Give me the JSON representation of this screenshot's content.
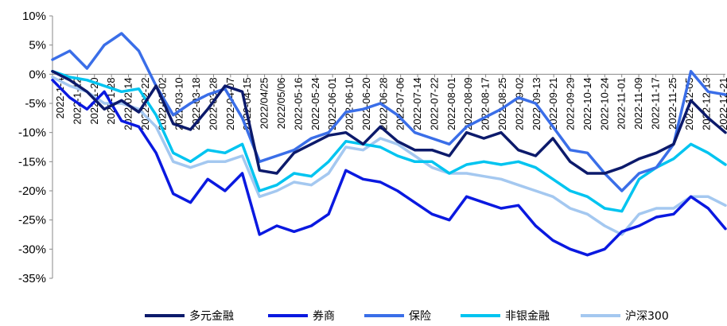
{
  "chart_data": {
    "type": "line",
    "title": "",
    "xlabel": "",
    "ylabel": "",
    "ylim": [
      -35,
      10
    ],
    "y_ticks": [
      "10%",
      "5%",
      "0%",
      "-5%",
      "-10%",
      "-15%",
      "-20%",
      "-25%",
      "-30%",
      "-35%"
    ],
    "x_tick_labels": [
      "2022-1-4",
      "2022-1-12",
      "2022-1-20",
      "2022-1-28",
      "2022-02-14",
      "2022-02-22",
      "2022-03-02",
      "2022-03-10",
      "2022-03-18",
      "2022-03-28",
      "2022-04-07",
      "2022-04-15",
      "2022/04/25",
      "2022/05/06",
      "2022-05-16",
      "2022-05-24",
      "2022-06-01",
      "2022-06-10",
      "2022-06-20",
      "2022-06-28",
      "2022-07-06",
      "2022-07-14",
      "2022-07-22",
      "2022-08-01",
      "2022-08-09",
      "2022-08-17",
      "2022-08-25",
      "2022-09-02",
      "2022-09-13",
      "2022-09-21",
      "2022-09-29",
      "2022-10-14",
      "2022-10-24",
      "2022-11-01",
      "2022-11-09",
      "2022-11-17",
      "2022-11-25",
      "2022-12-05",
      "2022-12-13",
      "2022-12-21"
    ],
    "grid": false,
    "legend_position": "bottom",
    "series": [
      {
        "name": "多元金融",
        "color": "#0c1a6b",
        "values": [
          0.5,
          -1,
          -3,
          -6,
          -4.5,
          -6.5,
          -2,
          -8.5,
          -9.5,
          -6,
          -2,
          -3,
          -16.5,
          -17,
          -13.5,
          -12,
          -10.5,
          -10,
          -12,
          -9,
          -11.5,
          -13,
          -13,
          -14,
          -10,
          -11,
          -10,
          -13,
          -14,
          -11,
          -15,
          -17,
          -17,
          -16,
          -14.5,
          -13.5,
          -12,
          -4.5,
          -7.5,
          -10
        ]
      },
      {
        "name": "券商",
        "color": "#0a19e0",
        "values": [
          -1,
          -4,
          -6,
          -3,
          -8,
          -9,
          -13.5,
          -20.5,
          -22,
          -18,
          -20,
          -17,
          -27.5,
          -26,
          -27,
          -26,
          -24,
          -16.5,
          -18,
          -18.5,
          -20,
          -22,
          -24,
          -25,
          -21,
          -22,
          -23,
          -22.5,
          -26,
          -28.5,
          -30,
          -31,
          -30,
          -27,
          -26,
          -24.5,
          -24,
          -21,
          -23,
          -26.5
        ]
      },
      {
        "name": "保险",
        "color": "#3a6ee8",
        "values": [
          2.5,
          4,
          1,
          5,
          7,
          4,
          -2,
          -7,
          -5,
          -3.5,
          -2.5,
          -7.5,
          -15,
          -14,
          -13,
          -11,
          -10,
          -6.5,
          -6,
          -5,
          -7,
          -10,
          -11,
          -12,
          -9,
          -7.5,
          -6,
          -4,
          -5,
          -9,
          -13,
          -13.5,
          -17,
          -20,
          -17,
          -16,
          -12,
          0.5,
          -3,
          -3.5
        ]
      },
      {
        "name": "非银金融",
        "color": "#00c4f0",
        "values": [
          0.5,
          -0.5,
          -1,
          -2,
          -3,
          -2.5,
          -7,
          -13.5,
          -15,
          -13,
          -13.5,
          -12,
          -20,
          -19,
          -17,
          -17.5,
          -15,
          -11.5,
          -12,
          -12.5,
          -14,
          -15,
          -15,
          -17,
          -15.5,
          -15,
          -15.5,
          -15,
          -16,
          -18,
          -20,
          -21,
          -23,
          -23.5,
          -18,
          -16,
          -14.5,
          -12,
          -13.5,
          -15.5
        ]
      },
      {
        "name": "沪深300",
        "color": "#a4c8f0",
        "values": [
          -0.5,
          -2,
          -3,
          -5,
          -5,
          -6,
          -9,
          -15,
          -16,
          -15,
          -15,
          -14,
          -21,
          -20,
          -18.5,
          -19,
          -17,
          -12.5,
          -13,
          -11,
          -12,
          -14,
          -16,
          -17,
          -17,
          -17.5,
          -18,
          -19,
          -20,
          -21,
          -23,
          -24,
          -26,
          -27.5,
          -24,
          -23,
          -23,
          -21,
          -21,
          -22.5
        ]
      }
    ]
  }
}
